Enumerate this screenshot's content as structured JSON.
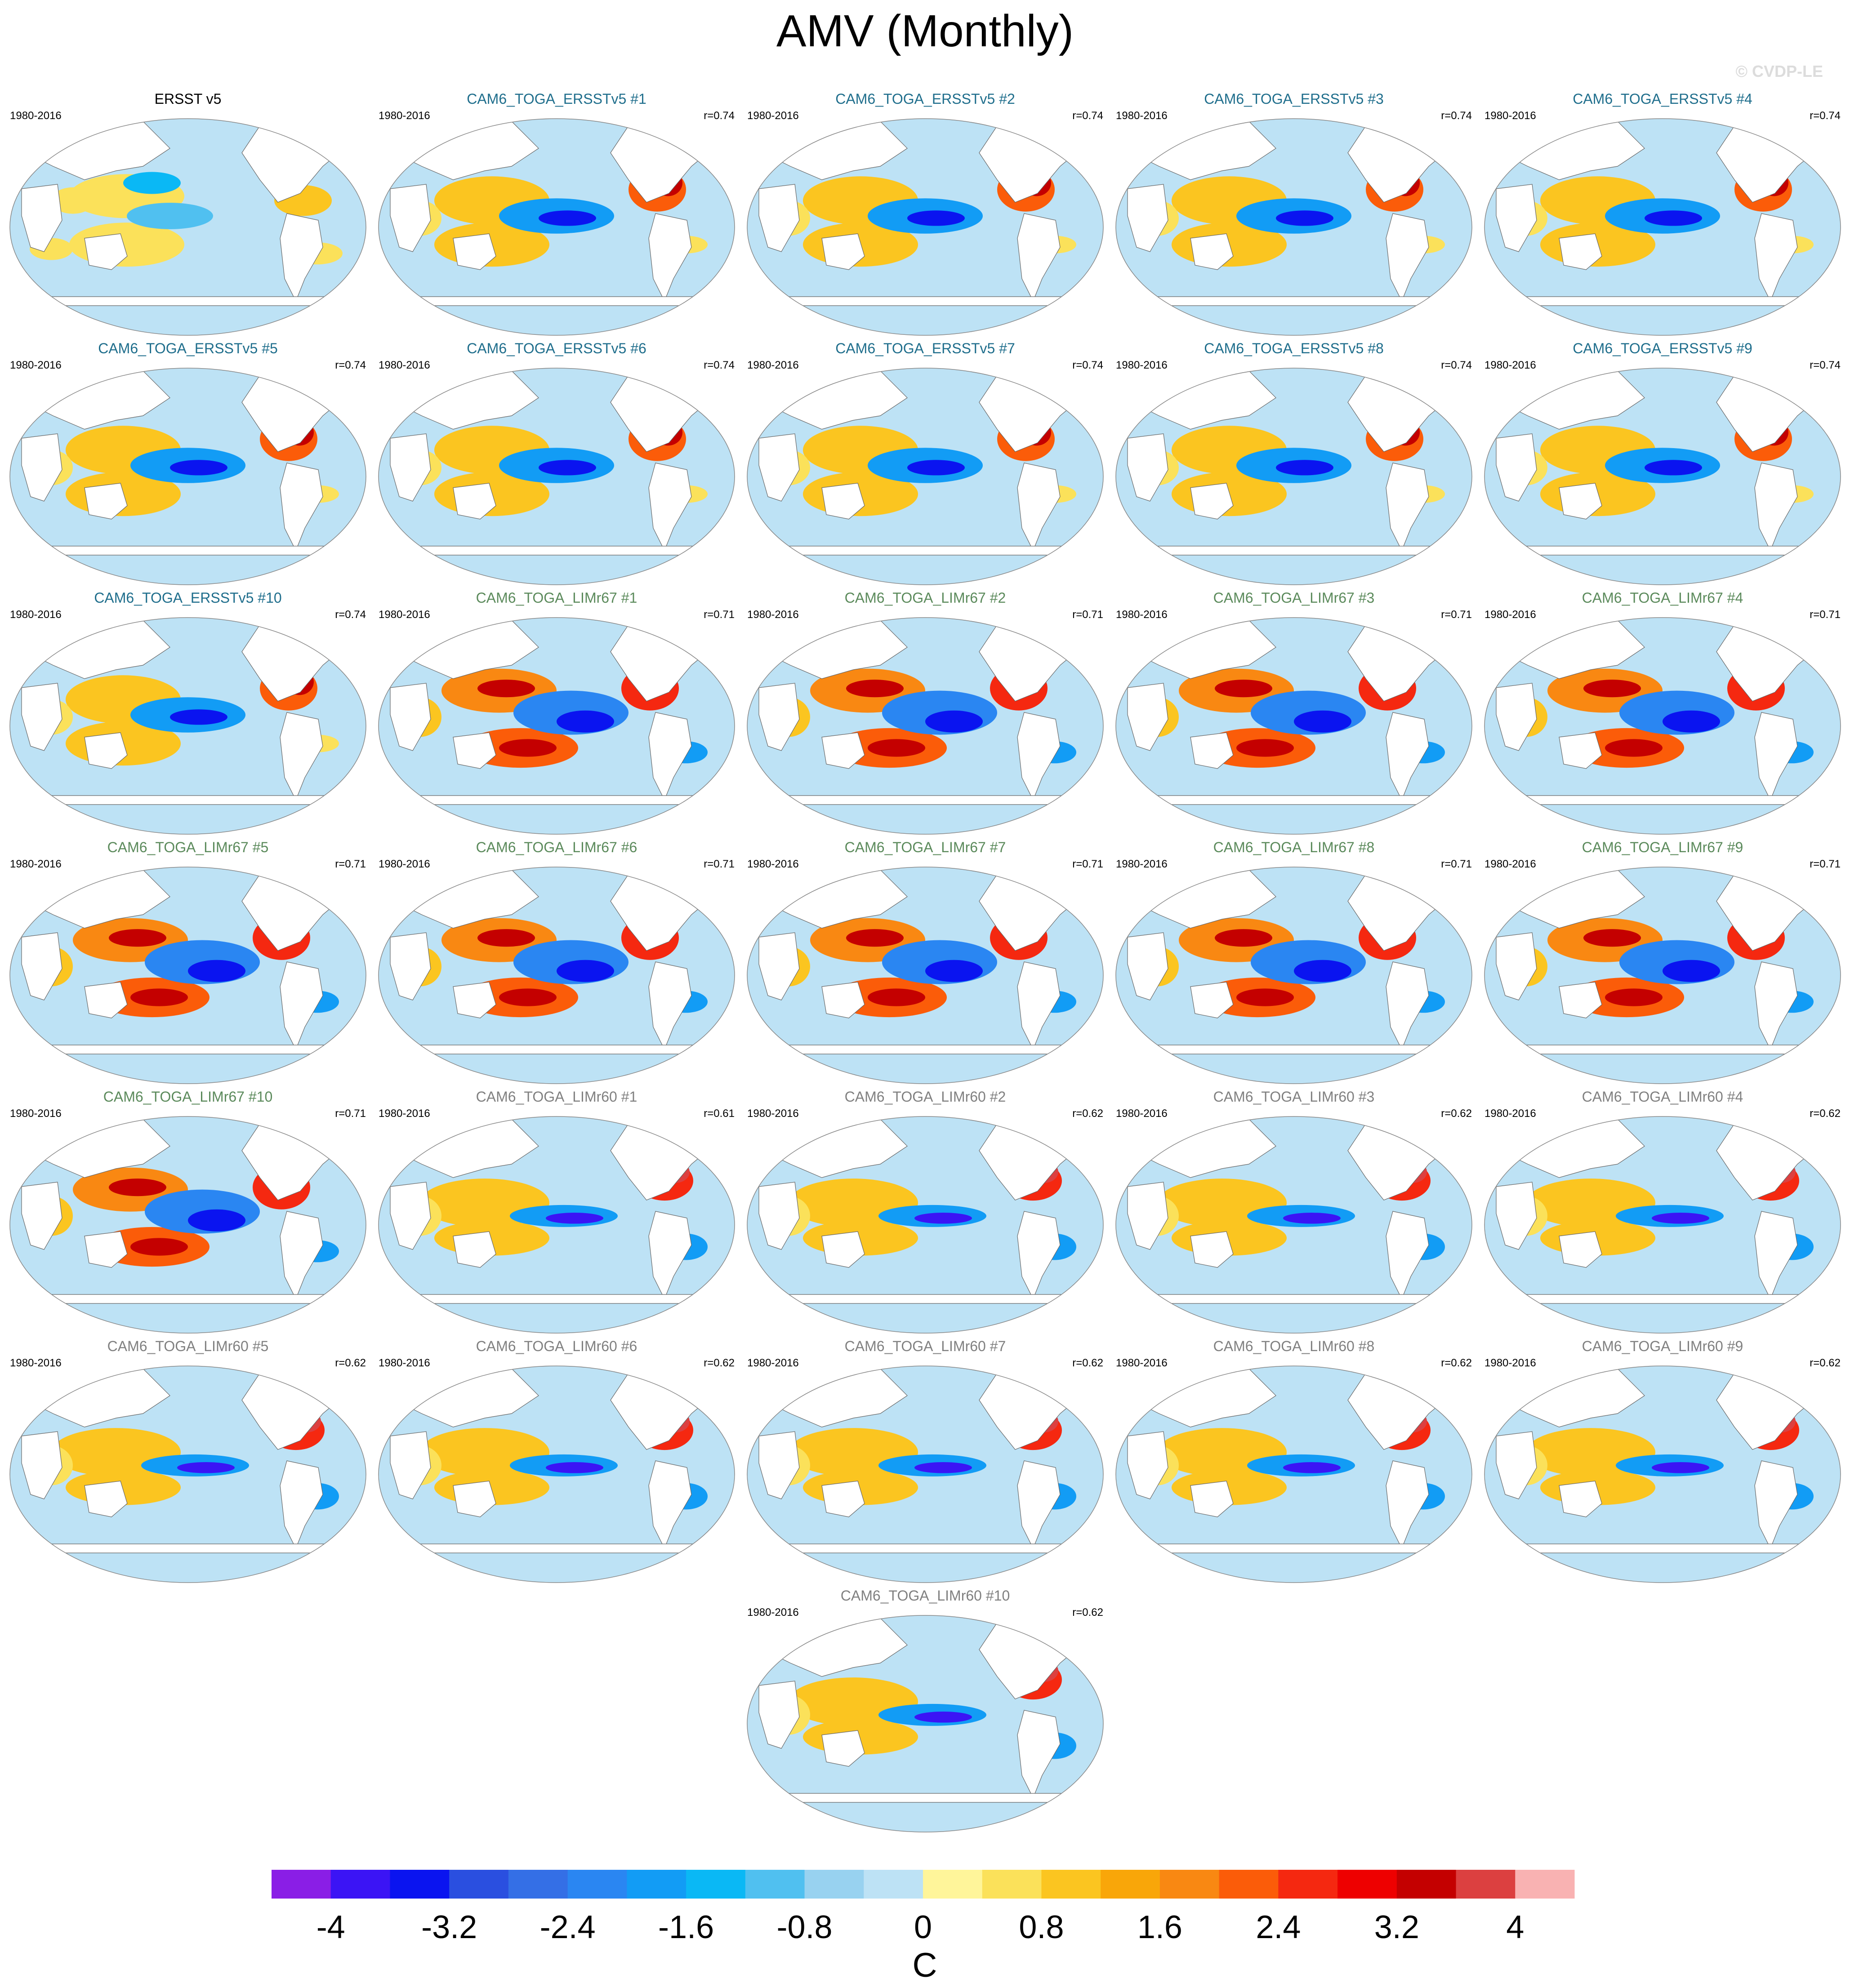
{
  "figure": {
    "title": "AMV (Monthly)",
    "credit": "© CVDP-LE"
  },
  "chart_data": {
    "type": "heatmap",
    "description_of_fields": "Global SST anomaly regression maps; each panel is one ensemble member",
    "panels": [
      {
        "title": "ERSST v5",
        "period": "1980-2016",
        "corr": "",
        "group": "obs"
      },
      {
        "title": "CAM6_TOGA_ERSSTv5 #1",
        "period": "1980-2016",
        "corr": "r=0.74",
        "group": "ersst"
      },
      {
        "title": "CAM6_TOGA_ERSSTv5 #2",
        "period": "1980-2016",
        "corr": "r=0.74",
        "group": "ersst"
      },
      {
        "title": "CAM6_TOGA_ERSSTv5 #3",
        "period": "1980-2016",
        "corr": "r=0.74",
        "group": "ersst"
      },
      {
        "title": "CAM6_TOGA_ERSSTv5 #4",
        "period": "1980-2016",
        "corr": "r=0.74",
        "group": "ersst"
      },
      {
        "title": "CAM6_TOGA_ERSSTv5 #5",
        "period": "1980-2016",
        "corr": "r=0.74",
        "group": "ersst"
      },
      {
        "title": "CAM6_TOGA_ERSSTv5 #6",
        "period": "1980-2016",
        "corr": "r=0.74",
        "group": "ersst"
      },
      {
        "title": "CAM6_TOGA_ERSSTv5 #7",
        "period": "1980-2016",
        "corr": "r=0.74",
        "group": "ersst"
      },
      {
        "title": "CAM6_TOGA_ERSSTv5 #8",
        "period": "1980-2016",
        "corr": "r=0.74",
        "group": "ersst"
      },
      {
        "title": "CAM6_TOGA_ERSSTv5 #9",
        "period": "1980-2016",
        "corr": "r=0.74",
        "group": "ersst"
      },
      {
        "title": "CAM6_TOGA_ERSSTv5 #10",
        "period": "1980-2016",
        "corr": "r=0.74",
        "group": "ersst"
      },
      {
        "title": "CAM6_TOGA_LIMr67 #1",
        "period": "1980-2016",
        "corr": "r=0.71",
        "group": "lim67"
      },
      {
        "title": "CAM6_TOGA_LIMr67 #2",
        "period": "1980-2016",
        "corr": "r=0.71",
        "group": "lim67"
      },
      {
        "title": "CAM6_TOGA_LIMr67 #3",
        "period": "1980-2016",
        "corr": "r=0.71",
        "group": "lim67"
      },
      {
        "title": "CAM6_TOGA_LIMr67 #4",
        "period": "1980-2016",
        "corr": "r=0.71",
        "group": "lim67"
      },
      {
        "title": "CAM6_TOGA_LIMr67 #5",
        "period": "1980-2016",
        "corr": "r=0.71",
        "group": "lim67"
      },
      {
        "title": "CAM6_TOGA_LIMr67 #6",
        "period": "1980-2016",
        "corr": "r=0.71",
        "group": "lim67"
      },
      {
        "title": "CAM6_TOGA_LIMr67 #7",
        "period": "1980-2016",
        "corr": "r=0.71",
        "group": "lim67"
      },
      {
        "title": "CAM6_TOGA_LIMr67 #8",
        "period": "1980-2016",
        "corr": "r=0.71",
        "group": "lim67"
      },
      {
        "title": "CAM6_TOGA_LIMr67 #9",
        "period": "1980-2016",
        "corr": "r=0.71",
        "group": "lim67"
      },
      {
        "title": "CAM6_TOGA_LIMr67 #10",
        "period": "1980-2016",
        "corr": "r=0.71",
        "group": "lim67"
      },
      {
        "title": "CAM6_TOGA_LIMr60 #1",
        "period": "1980-2016",
        "corr": "r=0.61",
        "group": "lim60"
      },
      {
        "title": "CAM6_TOGA_LIMr60 #2",
        "period": "1980-2016",
        "corr": "r=0.62",
        "group": "lim60"
      },
      {
        "title": "CAM6_TOGA_LIMr60 #3",
        "period": "1980-2016",
        "corr": "r=0.62",
        "group": "lim60"
      },
      {
        "title": "CAM6_TOGA_LIMr60 #4",
        "period": "1980-2016",
        "corr": "r=0.62",
        "group": "lim60"
      },
      {
        "title": "CAM6_TOGA_LIMr60 #5",
        "period": "1980-2016",
        "corr": "r=0.62",
        "group": "lim60"
      },
      {
        "title": "CAM6_TOGA_LIMr60 #6",
        "period": "1980-2016",
        "corr": "r=0.62",
        "group": "lim60"
      },
      {
        "title": "CAM6_TOGA_LIMr60 #7",
        "period": "1980-2016",
        "corr": "r=0.62",
        "group": "lim60"
      },
      {
        "title": "CAM6_TOGA_LIMr60 #8",
        "period": "1980-2016",
        "corr": "r=0.62",
        "group": "lim60"
      },
      {
        "title": "CAM6_TOGA_LIMr60 #9",
        "period": "1980-2016",
        "corr": "r=0.62",
        "group": "lim60"
      },
      {
        "title": "CAM6_TOGA_LIMr60 #10",
        "period": "1980-2016",
        "corr": "r=0.62",
        "group": "lim60"
      }
    ],
    "title_colors": {
      "obs": "#000000",
      "ersst": "#1f6e8c",
      "lim67": "#5b8a5b",
      "lim60": "#808080"
    },
    "colorbar": {
      "levels": [
        -4.4,
        -4,
        -3.6,
        -3.2,
        -2.8,
        -2.4,
        -2,
        -1.6,
        -1.2,
        -0.8,
        -0.4,
        0,
        0.4,
        0.8,
        1.2,
        1.6,
        2,
        2.4,
        2.8,
        3.2,
        3.6,
        4,
        4.4
      ],
      "colors": [
        "#8a1ee6",
        "#3b14f5",
        "#0a14f0",
        "#2a4fe0",
        "#346fe6",
        "#2a86f2",
        "#129cf5",
        "#0ab8f5",
        "#50c0f0",
        "#98d2f0",
        "#bde2f5",
        "#fff59a",
        "#fbe15a",
        "#fbc520",
        "#f9a609",
        "#f98812",
        "#fb5c09",
        "#f52810",
        "#ee0000",
        "#c40000",
        "#dc4040",
        "#f9b2b2"
      ],
      "tick_labels": [
        "-4",
        "-3.2",
        "-2.4",
        "-1.6",
        "-0.8",
        "0",
        "0.8",
        "1.6",
        "2.4",
        "3.2",
        "4"
      ],
      "unit": "C"
    },
    "map_colors": {
      "ocean_base": "#bde2f5",
      "land": "#ffffff",
      "coast": "#666666"
    }
  }
}
